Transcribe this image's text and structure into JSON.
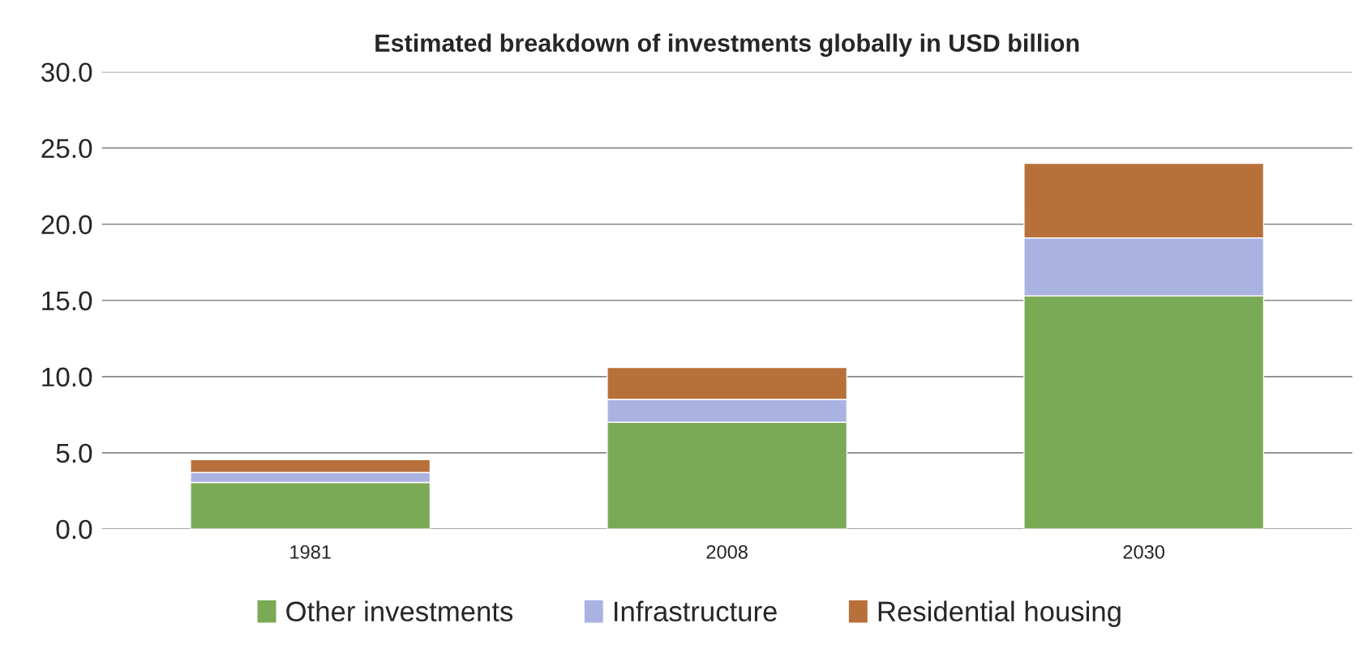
{
  "chart_data": {
    "type": "bar",
    "title": "Estimated breakdown of investments globally in USD billion",
    "categories": [
      "1981",
      "2008",
      "2030"
    ],
    "series": [
      {
        "name": "Other investments",
        "color": "#7aaa55",
        "values": [
          3.05,
          7.0,
          15.3
        ]
      },
      {
        "name": "Infrastructure",
        "color": "#aab2e2",
        "values": [
          0.65,
          1.5,
          3.8
        ]
      },
      {
        "name": "Residential housing",
        "color": "#b8703a",
        "values": [
          0.85,
          2.1,
          4.9
        ]
      }
    ],
    "stacked": true,
    "ylim": [
      0,
      30
    ],
    "yticks": [
      {
        "value": 0,
        "label": "0.0"
      },
      {
        "value": 5,
        "label": "5.0"
      },
      {
        "value": 10,
        "label": "10.0"
      },
      {
        "value": 15,
        "label": "15.0"
      },
      {
        "value": 20,
        "label": "20.0"
      },
      {
        "value": 25,
        "label": "25.0"
      },
      {
        "value": 30,
        "label": "30.0"
      }
    ],
    "grid": "y",
    "legend": "bottom"
  }
}
